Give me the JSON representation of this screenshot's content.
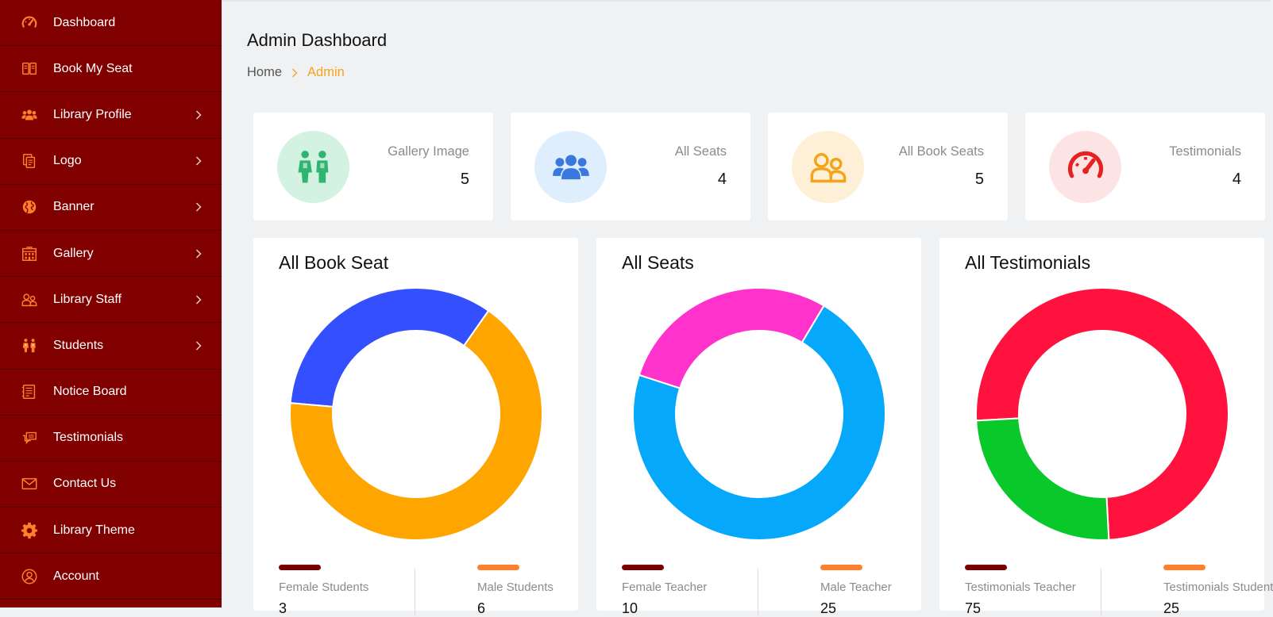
{
  "sidebar": {
    "items": [
      {
        "label": "Dashboard",
        "icon": "speedometer-icon",
        "has_chevron": false
      },
      {
        "label": "Book My Seat",
        "icon": "book-icon",
        "has_chevron": false
      },
      {
        "label": "Library Profile",
        "icon": "users-icon",
        "has_chevron": true
      },
      {
        "label": "Logo",
        "icon": "documents-icon",
        "has_chevron": true
      },
      {
        "label": "Banner",
        "icon": "globe-icon",
        "has_chevron": true
      },
      {
        "label": "Gallery",
        "icon": "building-icon",
        "has_chevron": true
      },
      {
        "label": "Library Staff",
        "icon": "staff-icon",
        "has_chevron": true
      },
      {
        "label": "Students",
        "icon": "students-icon",
        "has_chevron": true
      },
      {
        "label": "Notice Board",
        "icon": "notice-icon",
        "has_chevron": false
      },
      {
        "label": "Testimonials",
        "icon": "chat-icon",
        "has_chevron": false
      },
      {
        "label": "Contact Us",
        "icon": "envelope-icon",
        "has_chevron": false
      },
      {
        "label": "Library Theme",
        "icon": "gear-icon",
        "has_chevron": false
      },
      {
        "label": "Account",
        "icon": "user-circle-icon",
        "has_chevron": false
      }
    ]
  },
  "header": {
    "title": "Admin Dashboard",
    "breadcrumb_home": "Home",
    "breadcrumb_active": "Admin"
  },
  "stats": [
    {
      "label": "Gallery Image",
      "value": "5",
      "icon": "students-icon",
      "circle_color": "#d4f2e2",
      "icon_color": "#2fb56f"
    },
    {
      "label": "All Seats",
      "value": "4",
      "icon": "users-icon",
      "circle_color": "#dfeefd",
      "icon_color": "#3a78e0"
    },
    {
      "label": "All Book Seats",
      "value": "5",
      "icon": "staff-icon",
      "circle_color": "#fdf0d6",
      "icon_color": "#f5a31a"
    },
    {
      "label": "Testimonials",
      "value": "4",
      "icon": "speedometer-icon",
      "circle_color": "#fde4e4",
      "icon_color": "#e52121"
    }
  ],
  "colors": {
    "sidebar_bg": "#800000",
    "sidebar_icon": "#ff7f2a",
    "accent": "#f5a31a",
    "legend_primary": "#7a0000",
    "legend_secondary": "#ff7f2a"
  },
  "chart_data": [
    {
      "type": "pie",
      "title": "All Book Seat",
      "slices": [
        {
          "label": "Female Students",
          "value": 3,
          "color": "#344ffd"
        },
        {
          "label": "Male Students",
          "value": 6,
          "color": "#ffa500"
        }
      ],
      "legend": [
        {
          "name": "Female Students",
          "value": "3",
          "color": "#7a0000"
        },
        {
          "name": "Male Students",
          "value": "6",
          "color": "#ff7f2a"
        }
      ]
    },
    {
      "type": "pie",
      "title": "All Seats",
      "slices": [
        {
          "label": "Female Teacher",
          "value": 10,
          "color": "#ff33cc"
        },
        {
          "label": "Male Teacher",
          "value": 25,
          "color": "#05a8fb"
        }
      ],
      "legend": [
        {
          "name": "Female Teacher",
          "value": "10",
          "color": "#7a0000"
        },
        {
          "name": "Male Teacher",
          "value": "25",
          "color": "#ff7f2a"
        }
      ]
    },
    {
      "type": "pie",
      "title": "All Testimonials",
      "slices": [
        {
          "label": "Testimonials Teacher",
          "value": 75,
          "color": "#ff123d"
        },
        {
          "label": "Testimonials Student",
          "value": 25,
          "color": "#08c82a"
        }
      ],
      "legend": [
        {
          "name": "Testimonials Teacher",
          "value": "75",
          "color": "#7a0000"
        },
        {
          "name": "Testimonials Student",
          "value": "25",
          "color": "#ff7f2a"
        }
      ]
    }
  ]
}
